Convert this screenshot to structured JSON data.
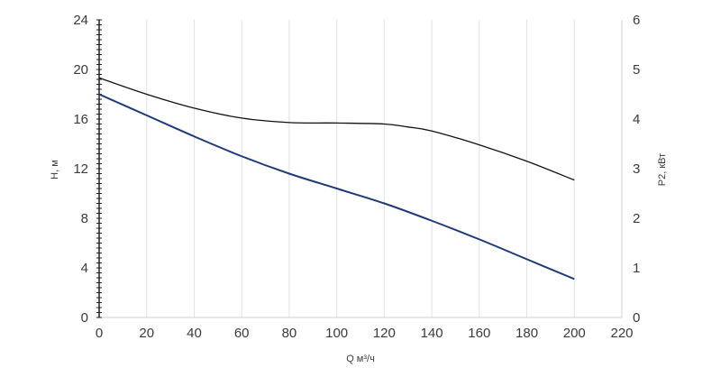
{
  "chart_data": {
    "type": "line",
    "xlabel": "Q м³/ч",
    "ylabel_left": "H, м",
    "ylabel_right": "P2, кВт",
    "xlim": [
      0,
      220
    ],
    "ylim_left": [
      0,
      24
    ],
    "ylim_right": [
      0,
      6
    ],
    "x_ticks": [
      0,
      20,
      40,
      60,
      80,
      100,
      120,
      140,
      160,
      180,
      200,
      220
    ],
    "y_ticks_left": [
      0,
      4,
      8,
      12,
      16,
      20,
      24
    ],
    "y_ticks_right": [
      0,
      1,
      2,
      3,
      4,
      5,
      6
    ],
    "grid": true,
    "series": [
      {
        "axis": "left",
        "color": "#1f3a7a",
        "x": [
          0,
          20,
          40,
          60,
          80,
          100,
          120,
          140,
          160,
          180,
          200
        ],
        "values": [
          18.0,
          16.3,
          14.6,
          13.0,
          11.6,
          10.4,
          9.2,
          7.8,
          6.3,
          4.7,
          3.1
        ]
      },
      {
        "axis": "right",
        "color": "#111111",
        "x": [
          0,
          20,
          40,
          60,
          80,
          100,
          120,
          130,
          140,
          160,
          180,
          200
        ],
        "values": [
          4.83,
          4.5,
          4.22,
          4.02,
          3.93,
          3.92,
          3.9,
          3.84,
          3.76,
          3.48,
          3.15,
          2.77
        ]
      }
    ]
  }
}
